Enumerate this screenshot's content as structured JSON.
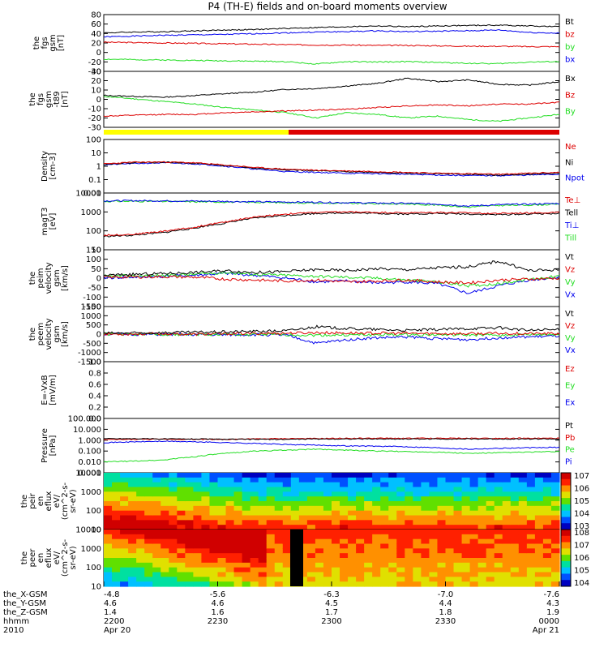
{
  "title": "P4 (TH-E) fields and on-board moments overview",
  "colors": {
    "black": "#000000",
    "red": "#dd0000",
    "green": "#22dd22",
    "blue": "#0000ee",
    "yellow": "#ffff00"
  },
  "chart_data": [
    {
      "type": "line",
      "id": "fgs_mag",
      "ylabel": [
        "the",
        "fgs",
        "gsm",
        "[nT]"
      ],
      "ylim": [
        -50,
        90
      ],
      "yticks": [
        "80",
        "60",
        "40",
        "20",
        "0",
        "-20",
        "-40"
      ],
      "series": [
        {
          "name": "Bt",
          "color": "black",
          "values": [
            45,
            47,
            48,
            50,
            52,
            53,
            56,
            58,
            60,
            62,
            60,
            62,
            63,
            64,
            62,
            60
          ]
        },
        {
          "name": "bz",
          "color": "red",
          "values": [
            22,
            21,
            20,
            19,
            18,
            17,
            16,
            15,
            15,
            14,
            14,
            13,
            12,
            12,
            11,
            11
          ]
        },
        {
          "name": "by",
          "color": "green",
          "values": [
            -20,
            -21,
            -22,
            -23,
            -24,
            -25,
            -26,
            -32,
            -26,
            -27,
            -26,
            -28,
            -30,
            -31,
            -27,
            -26
          ]
        },
        {
          "name": "bx",
          "color": "blue",
          "values": [
            35,
            37,
            39,
            40,
            41,
            43,
            45,
            47,
            48,
            50,
            48,
            49,
            50,
            52,
            46,
            44
          ]
        }
      ]
    },
    {
      "type": "line",
      "id": "fgs_gse",
      "ylabel": [
        "the",
        "fgs",
        "gsm",
        "-t89",
        "[nT]"
      ],
      "ylim": [
        -35,
        30
      ],
      "yticks": [
        "30",
        "20",
        "10",
        "0",
        "-10",
        "-20",
        "-30"
      ],
      "series": [
        {
          "name": "Bx",
          "color": "black",
          "values": [
            2,
            1,
            0,
            2,
            4,
            6,
            9,
            10,
            13,
            16,
            22,
            18,
            20,
            15,
            14,
            18
          ]
        },
        {
          "name": "Bz",
          "color": "red",
          "values": [
            -22,
            -21,
            -20,
            -20,
            -18,
            -17,
            -16,
            -15,
            -14,
            -12,
            -10,
            -9,
            -10,
            -8,
            -8,
            -6
          ]
        },
        {
          "name": "By",
          "color": "green",
          "values": [
            1,
            -2,
            -5,
            -8,
            -12,
            -15,
            -18,
            -24,
            -18,
            -20,
            -24,
            -22,
            -26,
            -28,
            -24,
            -20
          ]
        }
      ]
    },
    {
      "type": "line",
      "id": "density",
      "ylabel": [
        "Density",
        "[cm-3]"
      ],
      "log": true,
      "ylim": [
        0.01,
        100
      ],
      "yticks": [
        "100",
        "10",
        "1",
        "0.1",
        "0.01"
      ],
      "series": [
        {
          "name": "Ne",
          "color": "red",
          "values": [
            1.5,
            2,
            2.1,
            1.8,
            1.2,
            0.8,
            0.6,
            0.5,
            0.45,
            0.4,
            0.35,
            0.3,
            0.28,
            0.25,
            0.3,
            0.35
          ]
        },
        {
          "name": "Ni",
          "color": "black",
          "values": [
            1.4,
            1.9,
            2,
            1.7,
            1.1,
            0.7,
            0.55,
            0.45,
            0.4,
            0.35,
            0.3,
            0.28,
            0.25,
            0.22,
            0.26,
            0.3
          ]
        },
        {
          "name": "Npot",
          "color": "blue",
          "values": [
            1.3,
            1.6,
            1.8,
            1.5,
            1,
            0.6,
            0.4,
            0.35,
            0.3,
            0.28,
            0.25,
            0.22,
            0.2,
            0.2,
            0.22,
            0.25
          ]
        }
      ]
    },
    {
      "type": "line",
      "id": "temp",
      "ylabel": [
        "magT3",
        "[eV]"
      ],
      "log": true,
      "ylim": [
        10,
        20000
      ],
      "yticks": [
        "10000",
        "1000",
        "100",
        "10"
      ],
      "series": [
        {
          "name": "Te⊥",
          "color": "red",
          "values": [
            70,
            80,
            120,
            200,
            400,
            800,
            1200,
            1500,
            1600,
            1500,
            1400,
            1500,
            1400,
            1300,
            1400,
            1500
          ]
        },
        {
          "name": "Tell",
          "color": "black",
          "values": [
            60,
            70,
            100,
            180,
            350,
            700,
            1000,
            1300,
            1400,
            1300,
            1200,
            1300,
            1200,
            1100,
            1200,
            1300
          ]
        },
        {
          "name": "Ti⊥",
          "color": "blue",
          "values": [
            7000,
            7200,
            7000,
            6800,
            6500,
            6200,
            6000,
            5800,
            5500,
            5200,
            5000,
            4500,
            3500,
            4200,
            4500,
            5000
          ]
        },
        {
          "name": "Till",
          "color": "green",
          "values": [
            6500,
            6600,
            6500,
            6200,
            6000,
            5800,
            5500,
            5200,
            5000,
            4800,
            4600,
            4000,
            3000,
            3800,
            4000,
            4500
          ]
        }
      ]
    },
    {
      "type": "line",
      "id": "peim_vel",
      "ylabel": [
        "the",
        "peim",
        "velocity",
        "gsm",
        "[km/s]"
      ],
      "ylim": [
        -150,
        150
      ],
      "yticks": [
        "150",
        "100",
        "50",
        "0",
        "-50",
        "-100",
        "-150"
      ],
      "series": [
        {
          "name": "Vt",
          "color": "black",
          "values": [
            15,
            20,
            25,
            30,
            40,
            30,
            35,
            45,
            40,
            50,
            45,
            55,
            60,
            90,
            40,
            45
          ]
        },
        {
          "name": "Vz",
          "color": "red",
          "values": [
            5,
            6,
            8,
            5,
            -5,
            -10,
            -15,
            -10,
            -20,
            -15,
            -10,
            -20,
            -25,
            -10,
            -5,
            0
          ]
        },
        {
          "name": "Vy",
          "color": "green",
          "values": [
            10,
            12,
            15,
            20,
            30,
            20,
            15,
            10,
            5,
            0,
            -10,
            -20,
            -40,
            -30,
            -5,
            10
          ]
        },
        {
          "name": "Vx",
          "color": "blue",
          "values": [
            2,
            5,
            10,
            15,
            25,
            15,
            0,
            -20,
            -15,
            -25,
            -20,
            -30,
            -80,
            -40,
            -10,
            5
          ]
        }
      ]
    },
    {
      "type": "line",
      "id": "peem_vel",
      "ylabel": [
        "the",
        "peem",
        "velocity",
        "gsm",
        "[km/s]"
      ],
      "ylim": [
        -1500,
        1500
      ],
      "yticks": [
        "1500",
        "1000",
        "500",
        "0",
        "-500",
        "-1000",
        "-1500"
      ],
      "series": [
        {
          "name": "Vt",
          "color": "black",
          "values": [
            50,
            60,
            80,
            100,
            120,
            150,
            180,
            400,
            300,
            250,
            200,
            250,
            300,
            350,
            200,
            250
          ]
        },
        {
          "name": "Vz",
          "color": "red",
          "values": [
            0,
            10,
            20,
            -10,
            20,
            40,
            50,
            80,
            60,
            50,
            40,
            30,
            20,
            40,
            30,
            20
          ]
        },
        {
          "name": "Vy",
          "color": "green",
          "values": [
            0,
            -5,
            -10,
            -20,
            -30,
            -20,
            -40,
            -60,
            -50,
            -40,
            -30,
            -40,
            -50,
            -60,
            -30,
            -20
          ]
        },
        {
          "name": "Vx",
          "color": "blue",
          "values": [
            0,
            -10,
            -20,
            -30,
            -40,
            -30,
            -60,
            -500,
            -300,
            -200,
            -150,
            -250,
            -300,
            -200,
            -150,
            -100
          ]
        }
      ]
    },
    {
      "type": "line",
      "id": "efield",
      "ylabel": [
        "E=-VxB",
        "[mV/m]"
      ],
      "ylim": [
        0,
        1
      ],
      "yticks": [
        "1.0",
        "0.8",
        "0.6",
        "0.4",
        "0.2",
        "0.0"
      ],
      "series": [
        {
          "name": "Ez",
          "color": "red",
          "values": []
        },
        {
          "name": "Ey",
          "color": "green",
          "values": []
        },
        {
          "name": "Ex",
          "color": "blue",
          "values": []
        }
      ]
    },
    {
      "type": "line",
      "id": "pressure",
      "ylabel": [
        "Pressure",
        "[nPa]"
      ],
      "log": true,
      "ylim": [
        0.001,
        100
      ],
      "yticks": [
        "100.000",
        "10.000",
        "1.000",
        "0.100",
        "0.010",
        "0.001"
      ],
      "series": [
        {
          "name": "Pt",
          "color": "black",
          "values": [
            1.4,
            1.4,
            1.3,
            1.3,
            1.2,
            1.2,
            1.2,
            1.3,
            1.3,
            1.3,
            1.3,
            1.3,
            1.3,
            1.3,
            1.3,
            1.3
          ]
        },
        {
          "name": "Pb",
          "color": "red",
          "values": [
            1.1,
            1.2,
            1.2,
            1.2,
            1.2,
            1.3,
            1.4,
            1.4,
            1.5,
            1.5,
            1.5,
            1.5,
            1.5,
            1.5,
            1.5,
            1.5
          ]
        },
        {
          "name": "Pe",
          "color": "green",
          "values": [
            0.01,
            0.012,
            0.015,
            0.03,
            0.06,
            0.1,
            0.12,
            0.15,
            0.12,
            0.1,
            0.09,
            0.08,
            0.06,
            0.07,
            0.08,
            0.09
          ]
        },
        {
          "name": "Pi",
          "color": "blue",
          "values": [
            0.6,
            0.7,
            0.8,
            0.7,
            0.6,
            0.5,
            0.4,
            0.35,
            0.3,
            0.28,
            0.25,
            0.2,
            0.15,
            0.18,
            0.2,
            0.22
          ]
        }
      ]
    },
    {
      "type": "heatmap",
      "id": "peir_eflux",
      "ylabel": [
        "the",
        "peir",
        "en",
        "eflux",
        "eV/",
        "(cm^2-s-",
        "sr-eV)"
      ],
      "yticks": [
        "10000",
        "1000",
        "100",
        "10"
      ],
      "colorbar": [
        "10^7",
        "10^6",
        "10^5",
        "10^4",
        "10^3"
      ]
    },
    {
      "type": "heatmap",
      "id": "peer_eflux",
      "ylabel": [
        "the",
        "peer",
        "en",
        "eflux",
        "eV/",
        "(cm^2-s-",
        "sr-eV)"
      ],
      "yticks": [
        "10000",
        "1000",
        "100",
        "10"
      ],
      "colorbar": [
        "10^8",
        "10^7",
        "10^6",
        "10^5",
        "10^4"
      ]
    }
  ],
  "xaxis": {
    "rows": [
      {
        "label": "the_X-GSM",
        "values": [
          "-4.8",
          "-5.6",
          "-6.3",
          "-7.0",
          "-7.6"
        ]
      },
      {
        "label": "the_Y-GSM",
        "values": [
          "4.6",
          "4.6",
          "4.5",
          "4.4",
          "4.3"
        ]
      },
      {
        "label": "the_Z-GSM",
        "values": [
          "1.4",
          "1.6",
          "1.7",
          "1.8",
          "1.9"
        ]
      },
      {
        "label": "hhmm",
        "values": [
          "2200",
          "2230",
          "2300",
          "2330",
          "0000"
        ]
      },
      {
        "label": "2010",
        "values": [
          "Apr 20",
          "",
          "",
          "",
          "Apr 21"
        ]
      }
    ]
  }
}
